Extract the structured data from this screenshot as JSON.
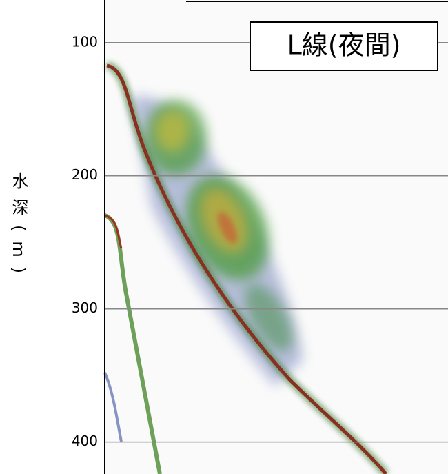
{
  "chart_data": {
    "type": "echogram",
    "annotation": "L線(夜間)",
    "y_label": "水深(m)",
    "ylim": [
      68,
      424
    ],
    "y_inverted": true,
    "yticks": [
      100,
      200,
      300,
      400
    ],
    "grid": true
  }
}
